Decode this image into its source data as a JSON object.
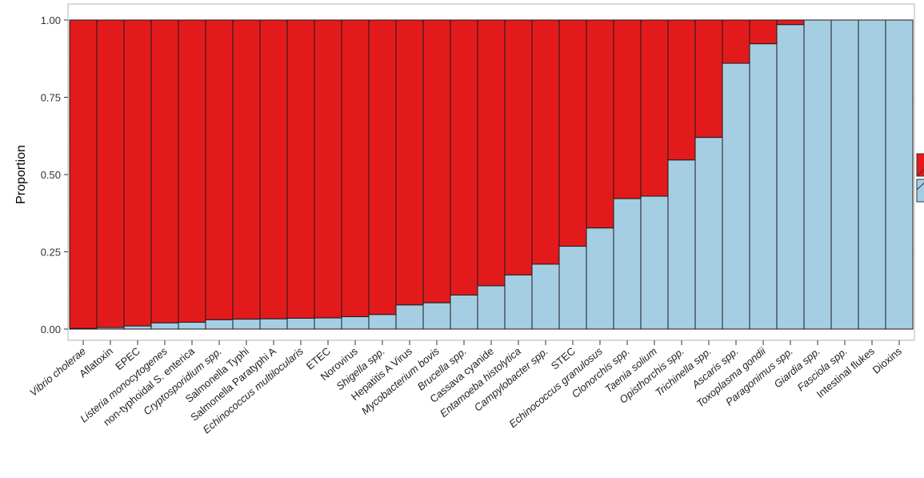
{
  "chart_data": {
    "type": "bar",
    "stacked": true,
    "title": "",
    "xlabel": "",
    "ylabel": "Proportion",
    "ylim": [
      0,
      1
    ],
    "yticks": [
      "0.00",
      "0.25",
      "0.50",
      "0.75",
      "1.00"
    ],
    "grid": true,
    "legend": "right (partially cropped, labels not visible)",
    "categories": [
      "Vibrio cholerae",
      "Aflatoxin",
      "EPEC",
      "Listeria monocytogenes",
      "non-typhoidal S. enterica",
      "Cryptosporidium spp.",
      "Salmonella Typhi",
      "Salmonella Paratyphi A",
      "Echinococcus multilocularis",
      "ETEC",
      "Norovirus",
      "Shigella spp.",
      "Hepatitis A Virus",
      "Mycobacterium bovis",
      "Brucella spp.",
      "Cassava cyanide",
      "Entamoeba histolytica",
      "Campylobacter spp.",
      "STEC",
      "Echinococcus granulosus",
      "Clonorchis spp.",
      "Taenia solium",
      "Opisthorchis spp.",
      "Trichinella spp.",
      "Ascaris spp.",
      "Toxoplasma gondii",
      "Paragonimus spp.",
      "Giardia spp.",
      "Fasciola spp.",
      "Intestinal flukes",
      "Dioxins"
    ],
    "italic_categories": [
      "Vibrio cholerae",
      "Listeria monocytogenes",
      "Cryptosporidium spp.",
      "Echinococcus multilocularis",
      "Shigella spp.",
      "Mycobacterium bovis",
      "Brucella spp.",
      "Entamoeba histolytica",
      "Campylobacter spp.",
      "Echinococcus granulosus",
      "Clonorchis spp.",
      "Taenia solium",
      "Opisthorchis spp.",
      "Trichinella spp.",
      "Ascaris spp.",
      "Toxoplasma gondii",
      "Paragonimus spp.",
      "Giardia spp.",
      "Fasciola spp."
    ],
    "series": [
      {
        "values": [
          0.002,
          0.005,
          0.01,
          0.02,
          0.022,
          0.03,
          0.032,
          0.033,
          0.035,
          0.036,
          0.04,
          0.047,
          0.078,
          0.085,
          0.11,
          0.14,
          0.175,
          0.21,
          0.268,
          0.327,
          0.422,
          0.43,
          0.547,
          0.62,
          0.86,
          0.923,
          0.985,
          1.0,
          1.0,
          1.0,
          1.0
        ],
        "color": "#a6cee3"
      },
      {
        "values": [
          0.998,
          0.995,
          0.99,
          0.98,
          0.978,
          0.97,
          0.968,
          0.967,
          0.965,
          0.964,
          0.96,
          0.953,
          0.922,
          0.915,
          0.89,
          0.86,
          0.825,
          0.79,
          0.732,
          0.673,
          0.578,
          0.57,
          0.453,
          0.38,
          0.14,
          0.077,
          0.015,
          0.0,
          0.0,
          0.0,
          0.0
        ],
        "color": "#e31a1c"
      }
    ]
  }
}
